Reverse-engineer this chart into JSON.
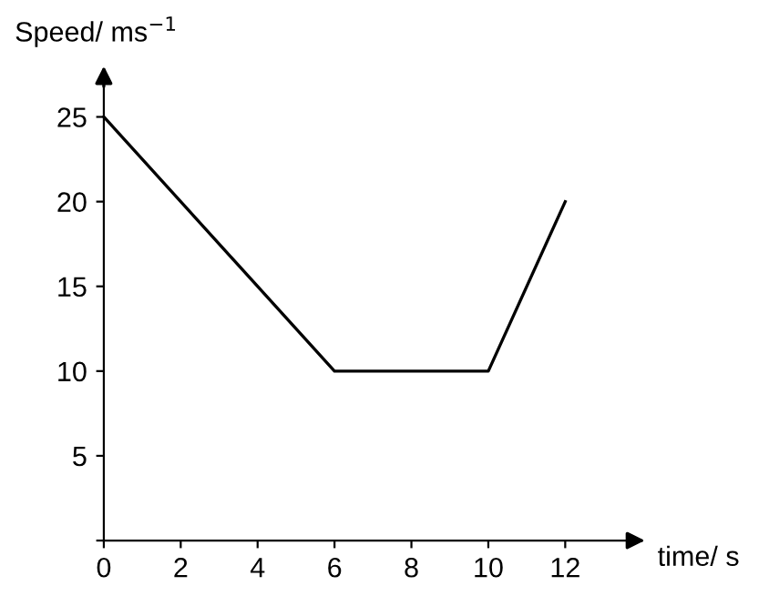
{
  "chart_data": {
    "type": "line",
    "xlabel": "time/ s",
    "ylabel": "Speed/ ms$^{−1}$",
    "x": [
      0,
      6,
      10,
      12
    ],
    "series": [
      {
        "color": "#000000",
        "values": [
          25,
          10,
          10,
          20
        ]
      }
    ],
    "xlim": [
      0,
      14
    ],
    "ylim": [
      0,
      27.5
    ],
    "xticks": [
      0,
      2,
      4,
      6,
      8,
      10,
      12
    ],
    "yticks": [
      {
        "value": 0,
        "label": null
      },
      5,
      10,
      15,
      20,
      25
    ],
    "grid": false,
    "legend": false,
    "marker": "none",
    "line_style": "solid"
  }
}
